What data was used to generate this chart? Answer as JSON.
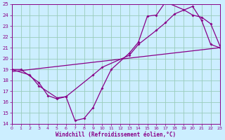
{
  "xlabel": "Windchill (Refroidissement éolien,°C)",
  "background_color": "#cceeff",
  "grid_color": "#99ccbb",
  "line_color": "#880088",
  "xlim": [
    0,
    23
  ],
  "ylim": [
    14,
    25
  ],
  "xticks": [
    0,
    1,
    2,
    3,
    4,
    5,
    6,
    7,
    8,
    9,
    10,
    11,
    12,
    13,
    14,
    15,
    16,
    17,
    18,
    19,
    20,
    21,
    22,
    23
  ],
  "yticks": [
    14,
    15,
    16,
    17,
    18,
    19,
    20,
    21,
    22,
    23,
    24,
    25
  ],
  "line1_x": [
    0,
    1,
    3,
    4,
    5,
    6,
    7,
    8,
    9,
    10,
    11,
    13,
    14,
    15,
    16,
    17,
    19,
    20,
    21,
    22,
    23
  ],
  "line1_y": [
    19,
    19,
    17.8,
    16.6,
    16.3,
    16.5,
    14.3,
    14.5,
    15.5,
    17.3,
    19.0,
    20.5,
    21.5,
    23.9,
    24.0,
    25.2,
    24.5,
    24.0,
    23.8,
    23.2,
    21.2
  ],
  "line2_x": [
    0,
    2,
    3,
    5,
    6,
    9,
    10,
    13,
    14,
    16,
    17,
    18,
    20,
    21,
    22,
    23
  ],
  "line2_y": [
    19,
    18.5,
    17.5,
    16.4,
    16.5,
    18.5,
    19.2,
    20.3,
    21.3,
    22.6,
    23.3,
    24.1,
    24.8,
    23.5,
    21.3,
    21.0
  ],
  "line3_x": [
    0,
    23
  ],
  "line3_y": [
    18.8,
    21.0
  ]
}
